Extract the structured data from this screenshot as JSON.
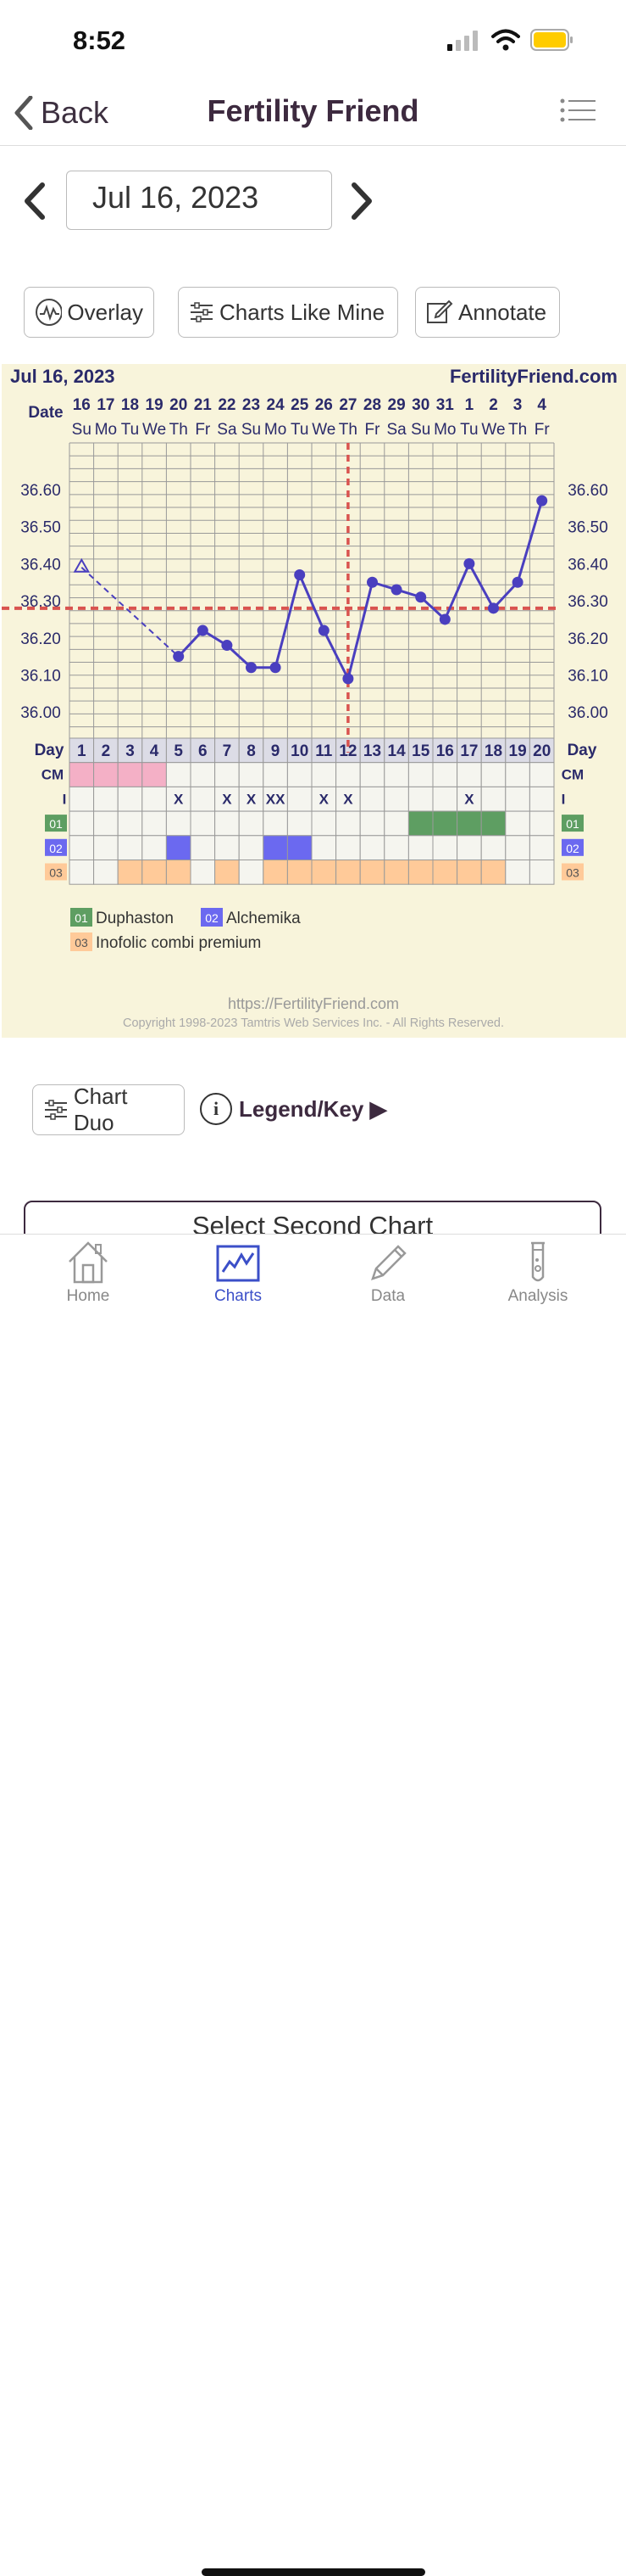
{
  "status": {
    "time": "8:52"
  },
  "nav": {
    "back_label": "Back",
    "title": "Fertility Friend"
  },
  "date_picker": {
    "value": "Jul 16, 2023"
  },
  "toolbar": {
    "overlay": "Overlay",
    "charts_like_mine": "Charts Like Mine",
    "annotate": "Annotate"
  },
  "chart_data": {
    "type": "line",
    "chart_date": "Jul 16, 2023",
    "site": "FertilityFriend.com",
    "date_label": "Date",
    "dates": [
      "16",
      "17",
      "18",
      "19",
      "20",
      "21",
      "22",
      "23",
      "24",
      "25",
      "26",
      "27",
      "28",
      "29",
      "30",
      "31",
      "1",
      "2",
      "3",
      "4"
    ],
    "weekdays": [
      "Su",
      "Mo",
      "Tu",
      "We",
      "Th",
      "Fr",
      "Sa",
      "Su",
      "Mo",
      "Tu",
      "We",
      "Th",
      "Fr",
      "Sa",
      "Su",
      "Mo",
      "Tu",
      "We",
      "Th",
      "Fr"
    ],
    "y_ticks": [
      "36.60",
      "36.50",
      "36.40",
      "36.30",
      "36.20",
      "36.10",
      "36.00"
    ],
    "ylim": [
      35.9,
      36.7
    ],
    "temps": [
      36.39,
      null,
      null,
      null,
      36.15,
      36.22,
      36.18,
      36.12,
      36.12,
      36.37,
      36.22,
      36.09,
      36.35,
      36.33,
      36.31,
      36.25,
      36.4,
      36.28,
      36.35,
      36.57
    ],
    "first_point_open": true,
    "coverline": 36.28,
    "ovulation_day": 12,
    "day_label": "Day",
    "days": [
      "1",
      "2",
      "3",
      "4",
      "5",
      "6",
      "7",
      "8",
      "9",
      "10",
      "11",
      "12",
      "13",
      "14",
      "15",
      "16",
      "17",
      "18",
      "19",
      "20"
    ],
    "cm_label": "CM",
    "cm": [
      1,
      1,
      1,
      1,
      0,
      0,
      0,
      0,
      0,
      0,
      0,
      0,
      0,
      0,
      0,
      0,
      0,
      0,
      0,
      0
    ],
    "i_label": "I",
    "intercourse": [
      "",
      "",
      "",
      "",
      "X",
      "",
      "X",
      "X",
      "XX",
      "",
      "X",
      "X",
      "",
      "",
      "",
      "",
      "X",
      "",
      "",
      ""
    ],
    "med_rows": [
      {
        "code": "01",
        "color": "#5e9e62",
        "days": [
          15,
          16,
          17,
          18
        ]
      },
      {
        "code": "02",
        "color": "#6b69f0",
        "days": [
          5,
          9,
          10
        ]
      },
      {
        "code": "03",
        "color": "#ffca99",
        "days": [
          3,
          4,
          5,
          7,
          9,
          10,
          11,
          12,
          13,
          14,
          15,
          16,
          17,
          18
        ]
      }
    ],
    "legend": [
      {
        "code": "01",
        "name": "Duphaston"
      },
      {
        "code": "02",
        "name": "Alchemika"
      },
      {
        "code": "03",
        "name": "Inofolic combi premium"
      }
    ],
    "footer_url": "https://FertilityFriend.com",
    "copyright": "Copyright 1998-2023 Tamtris Web Services Inc. - All Rights Reserved.",
    "colors": {
      "line": "#4a3fbf",
      "coverline": "#d9534f",
      "grid": "#999999",
      "bg": "#f8f4db",
      "cm": "#f4b0c6"
    }
  },
  "bottom_actions": {
    "chart_duo": "Chart Duo",
    "legend_key": "Legend/Key ▶",
    "select_second": "Select Second Chart"
  },
  "tabs": [
    {
      "label": "Home",
      "icon": "home-icon"
    },
    {
      "label": "Charts",
      "icon": "charts-icon",
      "active": true
    },
    {
      "label": "Data",
      "icon": "pencil-icon"
    },
    {
      "label": "Analysis",
      "icon": "test-tube-icon"
    }
  ]
}
